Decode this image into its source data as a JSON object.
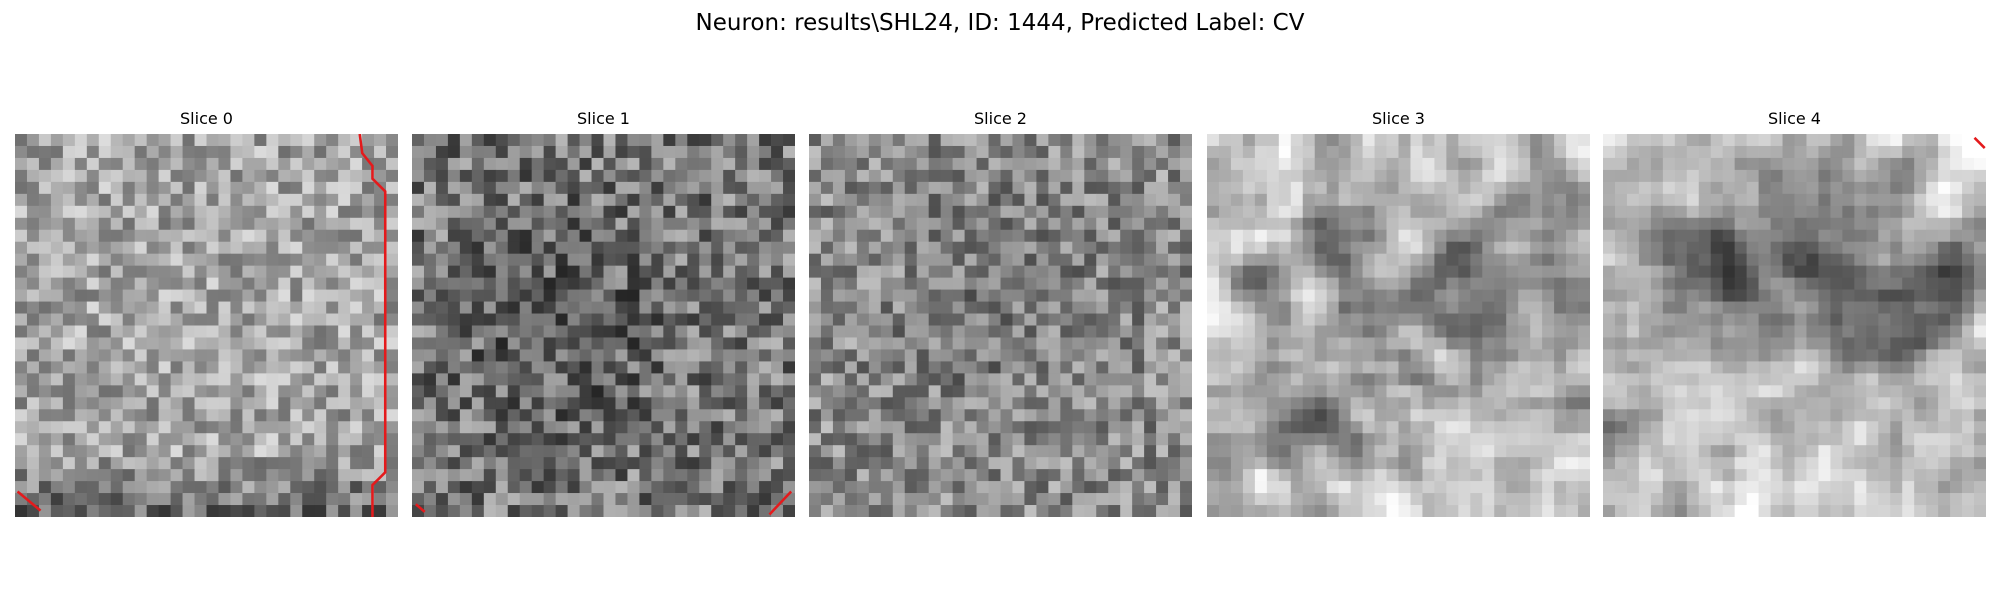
{
  "header": {
    "title": "Neuron: results\\SHL24, ID: 1444, Predicted Label: CV"
  },
  "panels": [
    {
      "label": "Slice 0"
    },
    {
      "label": "Slice 1"
    },
    {
      "label": "Slice 2"
    },
    {
      "label": "Slice 3"
    },
    {
      "label": "Slice 4"
    }
  ]
}
